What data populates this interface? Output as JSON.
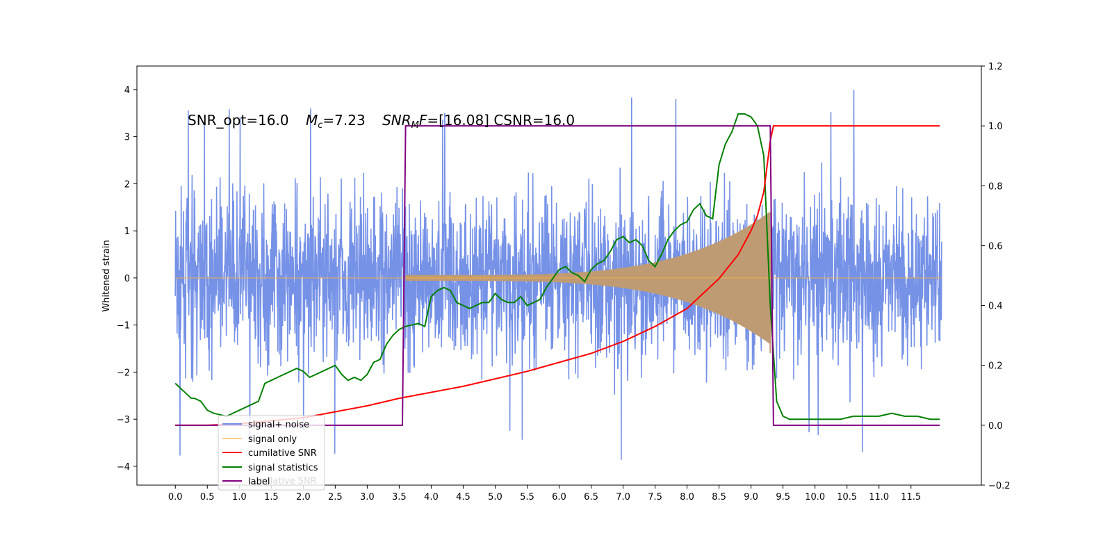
{
  "chart_data": {
    "type": "line",
    "annotation": {
      "part1": "SNR_opt=16.0",
      "mc_symbol": "M",
      "mc_sub": "c",
      "mc_value": "=7.23",
      "mf_symbol": "SNR",
      "mf_sub": "M",
      "mf_letter": "F",
      "mf_value": "=[16.08] CSNR=16.0"
    },
    "ylabel": "Whitened strain",
    "xlim": [
      -0.6,
      12.6
    ],
    "ylim": [
      -4.4,
      4.5
    ],
    "ylim_right": [
      -0.2,
      1.2
    ],
    "x_ticks": [
      "0.0",
      "0.5",
      "1.0",
      "1.5",
      "2.0",
      "2.5",
      "3.0",
      "3.5",
      "4.0",
      "4.5",
      "5.0",
      "5.5",
      "6.0",
      "6.5",
      "7.0",
      "7.5",
      "8.0",
      "8.5",
      "9.0",
      "9.5",
      "10.0",
      "10.5",
      "11.0",
      "11.5"
    ],
    "y_ticks": [
      "4",
      "3",
      "2",
      "1",
      "0",
      "−1",
      "−2",
      "−3",
      "−4"
    ],
    "y_ticks_right": [
      "1.2",
      "1.0",
      "0.8",
      "0.6",
      "0.4",
      "0.2",
      "0.0",
      "−0.2"
    ],
    "legend": {
      "placement": "lower left",
      "entries": [
        "signal+ noise",
        "signal only",
        "cumilative SNR",
        "signal statistics",
        "label"
      ],
      "overlap_text": "cumilative SNR"
    },
    "colors": {
      "noise": "#6f8ce6",
      "signal": "#f5b041",
      "chirp_fill": "#bf9b73",
      "cumulative": "#ff0000",
      "statistics": "#008000",
      "label": "#800080"
    },
    "signal_window": [
      3.6,
      9.3
    ],
    "noise_amplitude_envelope": {
      "core": 1.5,
      "spikes_max": 4.1
    },
    "series": [
      {
        "name": "signal statistics",
        "axis": "right",
        "x": [
          0.0,
          0.1,
          0.2,
          0.25,
          0.3,
          0.4,
          0.5,
          0.6,
          0.7,
          0.8,
          0.9,
          1.0,
          1.1,
          1.2,
          1.3,
          1.4,
          1.5,
          1.6,
          1.7,
          1.8,
          1.9,
          2.0,
          2.1,
          2.2,
          2.3,
          2.4,
          2.5,
          2.6,
          2.7,
          2.8,
          2.9,
          3.0,
          3.1,
          3.2,
          3.3,
          3.4,
          3.5,
          3.6,
          3.8,
          3.9,
          4.0,
          4.1,
          4.2,
          4.3,
          4.4,
          4.5,
          4.6,
          4.7,
          4.8,
          4.9,
          5.0,
          5.1,
          5.2,
          5.3,
          5.4,
          5.5,
          5.6,
          5.7,
          5.8,
          5.9,
          6.0,
          6.1,
          6.2,
          6.3,
          6.4,
          6.5,
          6.6,
          6.7,
          6.8,
          6.9,
          7.0,
          7.1,
          7.2,
          7.3,
          7.4,
          7.5,
          7.6,
          7.7,
          7.8,
          7.9,
          8.0,
          8.1,
          8.2,
          8.3,
          8.4,
          8.5,
          8.6,
          8.7,
          8.8,
          8.9,
          9.0,
          9.1,
          9.2,
          9.3,
          9.4,
          9.5,
          9.6,
          9.7,
          9.8,
          9.9,
          10.0,
          10.2,
          10.4,
          10.6,
          10.8,
          11.0,
          11.2,
          11.4,
          11.6,
          11.8,
          11.95
        ],
        "values": [
          0.14,
          0.12,
          0.1,
          0.09,
          0.09,
          0.08,
          0.05,
          0.04,
          0.035,
          0.03,
          0.04,
          0.05,
          0.06,
          0.07,
          0.08,
          0.14,
          0.15,
          0.16,
          0.17,
          0.18,
          0.19,
          0.18,
          0.16,
          0.17,
          0.18,
          0.19,
          0.2,
          0.17,
          0.15,
          0.16,
          0.15,
          0.17,
          0.21,
          0.22,
          0.27,
          0.3,
          0.32,
          0.33,
          0.34,
          0.33,
          0.43,
          0.45,
          0.46,
          0.45,
          0.41,
          0.4,
          0.39,
          0.4,
          0.41,
          0.41,
          0.44,
          0.42,
          0.41,
          0.41,
          0.43,
          0.4,
          0.41,
          0.42,
          0.46,
          0.49,
          0.52,
          0.53,
          0.51,
          0.5,
          0.48,
          0.52,
          0.54,
          0.55,
          0.58,
          0.62,
          0.63,
          0.61,
          0.62,
          0.6,
          0.55,
          0.53,
          0.57,
          0.62,
          0.65,
          0.67,
          0.68,
          0.72,
          0.74,
          0.7,
          0.69,
          0.87,
          0.94,
          0.98,
          1.04,
          1.04,
          1.03,
          1.0,
          0.9,
          0.4,
          0.08,
          0.03,
          0.02,
          0.02,
          0.02,
          0.02,
          0.02,
          0.02,
          0.02,
          0.03,
          0.03,
          0.03,
          0.04,
          0.03,
          0.03,
          0.02,
          0.02
        ]
      },
      {
        "name": "cumilative SNR",
        "axis": "right",
        "x": [
          0.0,
          0.5,
          1.0,
          1.5,
          2.0,
          2.5,
          3.0,
          3.5,
          4.0,
          4.5,
          5.0,
          5.5,
          6.0,
          6.5,
          7.0,
          7.5,
          8.0,
          8.5,
          8.8,
          9.0,
          9.1,
          9.2,
          9.3,
          9.35,
          11.95
        ],
        "values": [
          0.0,
          0.0,
          0.005,
          0.015,
          0.025,
          0.045,
          0.065,
          0.09,
          0.11,
          0.13,
          0.155,
          0.18,
          0.21,
          0.24,
          0.28,
          0.33,
          0.39,
          0.49,
          0.57,
          0.65,
          0.7,
          0.78,
          0.95,
          1.0,
          1.0
        ]
      },
      {
        "name": "label",
        "axis": "right",
        "x": [
          0.0,
          3.55,
          3.6,
          9.3,
          9.35,
          11.95
        ],
        "values": [
          0.0,
          0.0,
          1.0,
          1.0,
          0.0,
          0.0
        ]
      }
    ]
  }
}
